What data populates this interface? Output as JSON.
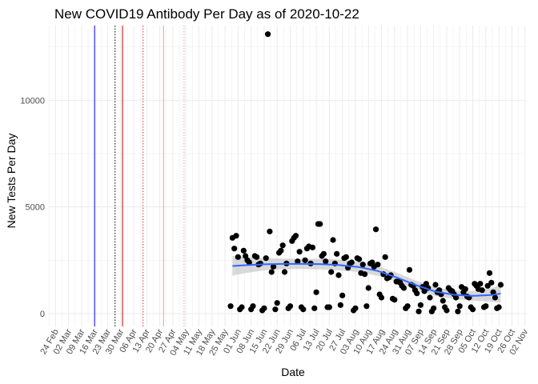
{
  "chart_data": {
    "type": "scatter",
    "title": "New COVID19 Antibody Per Day as of 2020-10-22",
    "xlabel": "Date",
    "ylabel": "New Tests Per Day",
    "x_ticks": [
      "24 Feb",
      "02 Mar",
      "09 Mar",
      "16 Mar",
      "23 Mar",
      "30 Mar",
      "06 Apr",
      "13 Apr",
      "20 Apr",
      "27 Apr",
      "04 May",
      "11 May",
      "18 May",
      "25 May",
      "01 Jun",
      "08 Jun",
      "15 Jun",
      "22 Jun",
      "29 Jun",
      "06 Jul",
      "13 Jul",
      "20 Jul",
      "27 Jul",
      "03 Aug",
      "10 Aug",
      "17 Aug",
      "24 Aug",
      "31 Aug",
      "07 Sep",
      "14 Sep",
      "21 Sep",
      "28 Sep",
      "05 Oct",
      "12 Oct",
      "19 Oct",
      "26 Oct",
      "02 Nov"
    ],
    "x_range": [
      "2020-02-20",
      "2020-11-03"
    ],
    "y_ticks": [
      0,
      5000,
      10000
    ],
    "y_range": [
      -600,
      13500
    ],
    "grid": true,
    "reference_lines": [
      {
        "date": "2020-03-16",
        "color": "#0000ff",
        "style": "solid"
      },
      {
        "date": "2020-03-27",
        "color": "#000000",
        "style": "dotted"
      },
      {
        "date": "2020-03-31",
        "color": "#cc0000",
        "style": "solid"
      },
      {
        "date": "2020-04-11",
        "color": "#cc3333",
        "style": "dotted"
      },
      {
        "date": "2020-04-22",
        "color": "#ee9999",
        "style": "solid"
      },
      {
        "date": "2020-05-03",
        "color": "#ee9999",
        "style": "dotted"
      }
    ],
    "series": [
      {
        "points": [
          [
            "2020-05-28",
            350
          ],
          [
            "2020-05-29",
            3550
          ],
          [
            "2020-05-30",
            3050
          ],
          [
            "2020-05-31",
            3650
          ],
          [
            "2020-06-01",
            2650
          ],
          [
            "2020-06-02",
            200
          ],
          [
            "2020-06-03",
            300
          ],
          [
            "2020-06-04",
            2950
          ],
          [
            "2020-06-05",
            2700
          ],
          [
            "2020-06-06",
            2500
          ],
          [
            "2020-06-07",
            2400
          ],
          [
            "2020-06-08",
            200
          ],
          [
            "2020-06-09",
            350
          ],
          [
            "2020-06-10",
            2700
          ],
          [
            "2020-06-11",
            2650
          ],
          [
            "2020-06-12",
            2300
          ],
          [
            "2020-06-13",
            2350
          ],
          [
            "2020-06-14",
            150
          ],
          [
            "2020-06-15",
            250
          ],
          [
            "2020-06-16",
            2600
          ],
          [
            "2020-06-17",
            13100
          ],
          [
            "2020-06-18",
            3850
          ],
          [
            "2020-06-19",
            1950
          ],
          [
            "2020-06-20",
            2200
          ],
          [
            "2020-06-21",
            200
          ],
          [
            "2020-06-22",
            500
          ],
          [
            "2020-06-23",
            2850
          ],
          [
            "2020-06-24",
            2950
          ],
          [
            "2020-06-25",
            3200
          ],
          [
            "2020-06-26",
            1950
          ],
          [
            "2020-06-27",
            2350
          ],
          [
            "2020-06-28",
            250
          ],
          [
            "2020-06-29",
            350
          ],
          [
            "2020-06-30",
            3400
          ],
          [
            "2020-07-01",
            3550
          ],
          [
            "2020-07-02",
            3650
          ],
          [
            "2020-07-03",
            2450
          ],
          [
            "2020-07-04",
            2900
          ],
          [
            "2020-07-05",
            300
          ],
          [
            "2020-07-06",
            200
          ],
          [
            "2020-07-07",
            2500
          ],
          [
            "2020-07-08",
            3050
          ],
          [
            "2020-07-09",
            3150
          ],
          [
            "2020-07-10",
            2350
          ],
          [
            "2020-07-11",
            3100
          ],
          [
            "2020-07-12",
            250
          ],
          [
            "2020-07-13",
            1000
          ],
          [
            "2020-07-14",
            4200
          ],
          [
            "2020-07-15",
            4200
          ],
          [
            "2020-07-16",
            2700
          ],
          [
            "2020-07-17",
            2800
          ],
          [
            "2020-07-18",
            2450
          ],
          [
            "2020-07-19",
            300
          ],
          [
            "2020-07-20",
            300
          ],
          [
            "2020-07-21",
            1950
          ],
          [
            "2020-07-22",
            3450
          ],
          [
            "2020-07-23",
            2350
          ],
          [
            "2020-07-24",
            2800
          ],
          [
            "2020-07-25",
            1800
          ],
          [
            "2020-07-26",
            400
          ],
          [
            "2020-07-27",
            850
          ],
          [
            "2020-07-28",
            2600
          ],
          [
            "2020-07-29",
            2650
          ],
          [
            "2020-07-30",
            2150
          ],
          [
            "2020-07-31",
            2350
          ],
          [
            "2020-08-01",
            2400
          ],
          [
            "2020-08-02",
            150
          ],
          [
            "2020-08-03",
            250
          ],
          [
            "2020-08-04",
            2600
          ],
          [
            "2020-08-05",
            2550
          ],
          [
            "2020-08-06",
            1900
          ],
          [
            "2020-08-07",
            2300
          ],
          [
            "2020-08-08",
            1850
          ],
          [
            "2020-08-09",
            350
          ],
          [
            "2020-08-10",
            1200
          ],
          [
            "2020-08-11",
            2350
          ],
          [
            "2020-08-12",
            2400
          ],
          [
            "2020-08-13",
            2200
          ],
          [
            "2020-08-14",
            3950
          ],
          [
            "2020-08-15",
            2300
          ],
          [
            "2020-08-16",
            900
          ],
          [
            "2020-08-17",
            750
          ],
          [
            "2020-08-18",
            1850
          ],
          [
            "2020-08-19",
            2650
          ],
          [
            "2020-08-20",
            1650
          ],
          [
            "2020-08-21",
            1700
          ],
          [
            "2020-08-22",
            1800
          ],
          [
            "2020-08-23",
            700
          ],
          [
            "2020-08-24",
            650
          ],
          [
            "2020-08-25",
            1500
          ],
          [
            "2020-08-26",
            1500
          ],
          [
            "2020-08-27",
            1450
          ],
          [
            "2020-08-28",
            1300
          ],
          [
            "2020-08-29",
            1200
          ],
          [
            "2020-08-30",
            250
          ],
          [
            "2020-08-31",
            350
          ],
          [
            "2020-09-01",
            2050
          ],
          [
            "2020-09-02",
            1350
          ],
          [
            "2020-09-03",
            1300
          ],
          [
            "2020-09-04",
            1100
          ],
          [
            "2020-09-05",
            950
          ],
          [
            "2020-09-06",
            100
          ],
          [
            "2020-09-07",
            400
          ],
          [
            "2020-09-08",
            1250
          ],
          [
            "2020-09-09",
            1050
          ],
          [
            "2020-09-10",
            1400
          ],
          [
            "2020-09-11",
            1200
          ],
          [
            "2020-09-12",
            750
          ],
          [
            "2020-09-13",
            100
          ],
          [
            "2020-09-14",
            250
          ],
          [
            "2020-09-15",
            1350
          ],
          [
            "2020-09-16",
            1000
          ],
          [
            "2020-09-17",
            1100
          ],
          [
            "2020-09-18",
            900
          ],
          [
            "2020-09-19",
            600
          ],
          [
            "2020-09-20",
            300
          ],
          [
            "2020-09-21",
            150
          ],
          [
            "2020-09-22",
            1200
          ],
          [
            "2020-09-23",
            1100
          ],
          [
            "2020-09-24",
            1050
          ],
          [
            "2020-09-25",
            900
          ],
          [
            "2020-09-26",
            750
          ],
          [
            "2020-09-27",
            100
          ],
          [
            "2020-09-28",
            350
          ],
          [
            "2020-09-29",
            1250
          ],
          [
            "2020-09-30",
            1000
          ],
          [
            "2020-10-01",
            1150
          ],
          [
            "2020-10-02",
            800
          ],
          [
            "2020-10-03",
            750
          ],
          [
            "2020-10-04",
            300
          ],
          [
            "2020-10-05",
            200
          ],
          [
            "2020-10-06",
            1400
          ],
          [
            "2020-10-07",
            1300
          ],
          [
            "2020-10-08",
            1150
          ],
          [
            "2020-10-09",
            1400
          ],
          [
            "2020-10-10",
            1100
          ],
          [
            "2020-10-11",
            300
          ],
          [
            "2020-10-12",
            350
          ],
          [
            "2020-10-13",
            1300
          ],
          [
            "2020-10-14",
            1900
          ],
          [
            "2020-10-15",
            1450
          ],
          [
            "2020-10-16",
            1000
          ],
          [
            "2020-10-17",
            750
          ],
          [
            "2020-10-18",
            250
          ],
          [
            "2020-10-19",
            300
          ],
          [
            "2020-10-20",
            1350
          ]
        ]
      }
    ],
    "smooth": [
      [
        "2020-05-29",
        2230
      ],
      [
        "2020-06-05",
        2270
      ],
      [
        "2020-06-15",
        2310
      ],
      [
        "2020-06-25",
        2330
      ],
      [
        "2020-07-05",
        2330
      ],
      [
        "2020-07-15",
        2320
      ],
      [
        "2020-07-25",
        2280
      ],
      [
        "2020-08-05",
        2180
      ],
      [
        "2020-08-15",
        2000
      ],
      [
        "2020-08-25",
        1700
      ],
      [
        "2020-09-05",
        1320
      ],
      [
        "2020-09-15",
        1030
      ],
      [
        "2020-09-25",
        880
      ],
      [
        "2020-10-05",
        830
      ],
      [
        "2020-10-15",
        870
      ],
      [
        "2020-10-20",
        940
      ]
    ],
    "smooth_band": [
      [
        "2020-05-29",
        1780,
        2700
      ],
      [
        "2020-06-05",
        1900,
        2650
      ],
      [
        "2020-06-15",
        2030,
        2600
      ],
      [
        "2020-06-25",
        2080,
        2580
      ],
      [
        "2020-07-05",
        2090,
        2570
      ],
      [
        "2020-07-15",
        2070,
        2570
      ],
      [
        "2020-07-25",
        2030,
        2530
      ],
      [
        "2020-08-05",
        1950,
        2420
      ],
      [
        "2020-08-15",
        1770,
        2230
      ],
      [
        "2020-08-25",
        1480,
        1920
      ],
      [
        "2020-09-05",
        1110,
        1530
      ],
      [
        "2020-09-15",
        830,
        1230
      ],
      [
        "2020-09-25",
        680,
        1080
      ],
      [
        "2020-10-05",
        610,
        1060
      ],
      [
        "2020-10-15",
        560,
        1190
      ],
      [
        "2020-10-20",
        520,
        1370
      ]
    ],
    "colors": {
      "points": "#000000",
      "smooth": "#3366ff",
      "band": "#bfbfbf",
      "grid": "#ebebeb"
    }
  }
}
